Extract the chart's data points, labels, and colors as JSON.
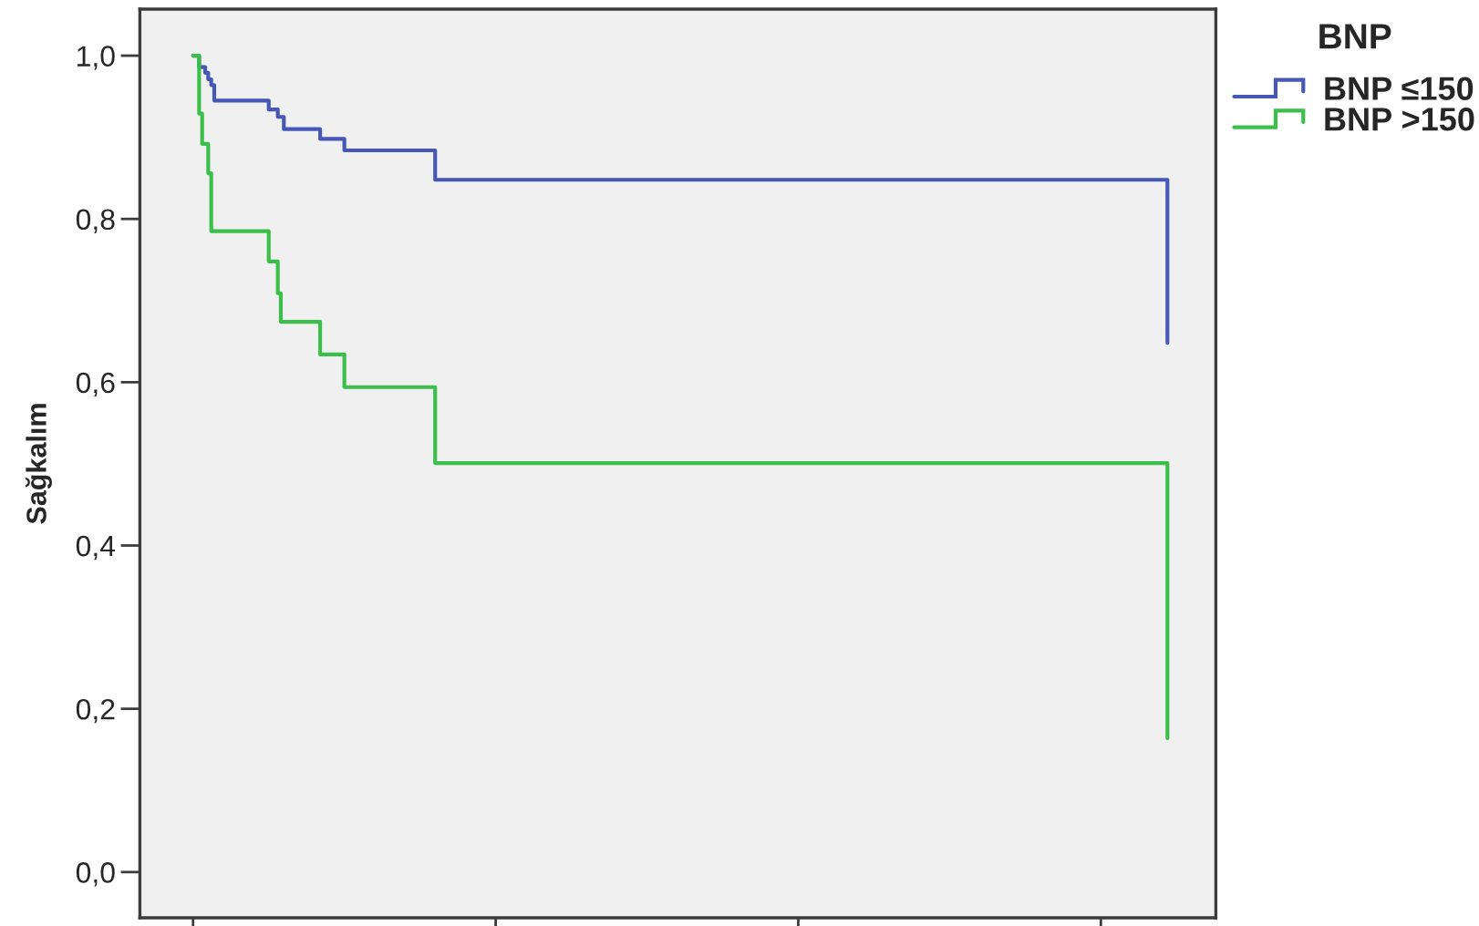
{
  "chart_data": {
    "type": "step",
    "ylabel": "Sağkalım",
    "legend_title": "BNP",
    "categories": [
      null,
      null,
      null,
      null,
      null,
      null,
      null,
      null,
      null,
      null,
      null,
      null,
      null,
      null,
      null,
      null,
      null,
      null,
      null,
      null,
      null,
      null,
      null,
      null,
      null,
      null,
      null,
      null,
      null,
      null,
      null,
      null,
      null,
      null,
      null,
      null,
      null,
      null,
      null,
      null,
      null,
      null,
      null,
      null,
      null,
      null,
      null,
      null,
      null,
      null,
      null,
      null,
      null,
      null,
      null,
      null,
      null,
      null,
      null,
      null,
      null,
      null,
      null,
      null,
      null,
      null,
      null,
      null,
      null,
      null,
      null,
      null,
      null,
      null,
      null,
      null,
      null,
      null,
      null,
      null,
      null,
      null,
      null,
      null,
      null,
      null,
      null,
      null,
      null,
      null,
      null,
      null,
      null,
      null,
      null,
      null,
      null,
      null,
      null,
      null,
      null,
      null,
      null,
      null,
      null,
      null,
      null,
      null,
      null,
      null,
      null,
      null,
      null,
      null,
      null,
      null,
      null,
      null,
      null,
      null,
      null,
      null,
      null,
      null,
      null,
      null,
      null,
      null,
      null,
      null,
      null,
      null,
      null,
      null,
      null,
      null,
      null,
      null,
      null,
      null,
      null,
      null,
      null,
      null,
      null,
      null,
      null,
      null,
      null,
      null,
      null,
      null,
      null,
      null,
      null,
      null,
      null,
      null,
      null,
      null,
      null,
      null,
      null,
      null,
      null,
      null,
      null,
      null,
      null,
      null,
      null,
      null,
      null,
      null,
      null,
      null,
      null,
      null,
      null,
      null,
      null,
      null,
      null,
      null,
      null,
      null,
      null,
      null,
      null,
      null,
      null,
      null,
      null,
      null,
      null,
      null,
      null,
      null,
      null,
      null,
      null,
      null,
      null,
      null,
      null,
      null,
      null,
      null,
      null,
      null,
      null,
      null,
      null,
      null,
      null,
      null,
      null,
      null,
      null,
      null,
      null,
      null,
      null,
      null,
      null,
      null,
      null,
      null,
      null,
      null,
      null,
      null,
      null,
      null,
      null,
      null,
      null,
      null,
      null,
      null,
      null,
      null,
      null,
      null,
      null,
      null,
      null,
      null,
      null,
      null,
      null,
      null,
      null,
      null,
      null,
      null,
      null,
      null,
      null,
      null,
      null,
      null,
      null,
      null,
      null,
      null,
      null,
      null,
      null,
      null,
      null,
      null,
      null,
      null,
      null,
      null,
      null,
      null,
      null,
      null,
      null,
      null,
      null,
      null,
      null,
      null,
      null,
      null,
      null,
      null,
      null,
      null,
      null,
      null,
      null,
      null,
      null,
      null,
      null,
      null,
      null,
      null,
      null,
      null,
      null,
      null,
      null,
      null,
      null,
      null,
      null,
      null,
      null,
      null,
      null,
      null,
      null,
      null,
      null,
      null,
      null,
      null,
      null
    ],
    "series": [
      {
        "name": "BNP ≤150",
        "color": "#4657b5",
        "values": [
          1.0,
          1.0,
          0.986,
          0.986,
          0.979,
          0.971,
          0.964,
          0.945,
          0.945,
          0.945,
          0.945,
          0.945,
          0.945,
          0.945,
          0.945,
          0.945,
          0.945,
          0.945,
          0.945,
          0.945,
          0.945,
          0.945,
          0.945,
          0.945,
          0.945,
          0.934,
          0.934,
          0.934,
          0.925,
          0.925,
          0.91,
          0.91,
          0.91,
          0.91,
          0.91,
          0.91,
          0.91,
          0.91,
          0.91,
          0.91,
          0.91,
          0.91,
          0.898,
          0.898,
          0.898,
          0.898,
          0.898,
          0.898,
          0.898,
          0.898,
          0.884,
          0.884,
          0.884,
          0.884,
          0.884,
          0.884,
          0.884,
          0.884,
          0.884,
          0.884,
          0.884,
          0.884,
          0.884,
          0.884,
          0.884,
          0.884,
          0.884,
          0.884,
          0.884,
          0.884,
          0.884,
          0.884,
          0.884,
          0.884,
          0.884,
          0.884,
          0.884,
          0.884,
          0.884,
          0.884,
          0.848,
          0.848,
          0.848,
          0.848,
          0.848,
          0.848,
          0.848,
          0.848,
          0.848,
          0.848,
          0.848,
          0.848,
          0.848,
          0.848,
          0.848,
          0.848,
          0.848,
          0.848,
          0.848,
          0.848,
          0.848,
          0.848,
          0.848,
          0.848,
          0.848,
          0.848,
          0.848,
          0.848,
          0.848,
          0.848,
          0.848,
          0.848,
          0.848,
          0.848,
          0.848,
          0.848,
          0.848,
          0.848,
          0.848,
          0.848,
          0.848,
          0.848,
          0.848,
          0.848,
          0.848,
          0.848,
          0.848,
          0.848,
          0.848,
          0.848,
          0.848,
          0.848,
          0.848,
          0.848,
          0.848,
          0.848,
          0.848,
          0.848,
          0.848,
          0.848,
          0.848,
          0.848,
          0.848,
          0.848,
          0.848,
          0.848,
          0.848,
          0.848,
          0.848,
          0.848,
          0.848,
          0.848,
          0.848,
          0.848,
          0.848,
          0.848,
          0.848,
          0.848,
          0.848,
          0.848,
          0.848,
          0.848,
          0.848,
          0.848,
          0.848,
          0.848,
          0.848,
          0.848,
          0.848,
          0.848,
          0.848,
          0.848,
          0.848,
          0.848,
          0.848,
          0.848,
          0.848,
          0.848,
          0.848,
          0.848,
          0.848,
          0.848,
          0.848,
          0.848,
          0.848,
          0.848,
          0.848,
          0.848,
          0.848,
          0.848,
          0.848,
          0.848,
          0.848,
          0.848,
          0.848,
          0.848,
          0.848,
          0.848,
          0.848,
          0.848,
          0.848,
          0.848,
          0.848,
          0.848,
          0.848,
          0.848,
          0.848,
          0.848,
          0.848,
          0.848,
          0.848,
          0.848,
          0.848,
          0.848,
          0.848,
          0.848,
          0.848,
          0.848,
          0.848,
          0.848,
          0.848,
          0.848,
          0.848,
          0.848,
          0.848,
          0.848,
          0.848,
          0.848,
          0.848,
          0.848,
          0.848,
          0.848,
          0.848,
          0.848,
          0.848,
          0.848,
          0.848,
          0.848,
          0.848,
          0.848,
          0.848,
          0.848,
          0.848,
          0.848,
          0.848,
          0.848,
          0.848,
          0.848,
          0.848,
          0.848,
          0.848,
          0.848,
          0.848,
          0.848,
          0.848,
          0.848,
          0.848,
          0.848,
          0.848,
          0.848,
          0.848,
          0.848,
          0.848,
          0.848,
          0.848,
          0.848,
          0.848,
          0.848,
          0.848,
          0.848,
          0.848,
          0.848,
          0.848,
          0.848,
          0.848,
          0.848,
          0.848,
          0.848,
          0.848,
          0.848,
          0.848,
          0.848,
          0.848,
          0.848,
          0.848,
          0.848,
          0.848,
          0.848,
          0.848,
          0.848,
          0.848,
          0.848,
          0.848,
          0.848,
          0.848,
          0.848,
          0.848,
          0.848,
          0.848,
          0.848,
          0.848,
          0.848,
          0.848,
          0.848,
          0.848,
          0.848,
          0.848,
          0.848,
          0.848,
          0.848,
          0.848,
          0.848,
          0.848,
          0.848,
          0.848,
          0.848,
          0.848,
          0.848,
          0.848,
          0.848,
          0.848,
          0.848,
          0.648
        ]
      },
      {
        "name": "BNP >150",
        "color": "#3cbf4a",
        "values": [
          1.0,
          1.0,
          0.929,
          0.892,
          0.892,
          0.856,
          0.785,
          0.785,
          0.785,
          0.785,
          0.785,
          0.785,
          0.785,
          0.785,
          0.785,
          0.785,
          0.785,
          0.785,
          0.785,
          0.785,
          0.785,
          0.785,
          0.785,
          0.785,
          0.785,
          0.748,
          0.748,
          0.748,
          0.709,
          0.674,
          0.674,
          0.674,
          0.674,
          0.674,
          0.674,
          0.674,
          0.674,
          0.674,
          0.674,
          0.674,
          0.674,
          0.674,
          0.634,
          0.634,
          0.634,
          0.634,
          0.634,
          0.634,
          0.634,
          0.634,
          0.594,
          0.594,
          0.594,
          0.594,
          0.594,
          0.594,
          0.594,
          0.594,
          0.594,
          0.594,
          0.594,
          0.594,
          0.594,
          0.594,
          0.594,
          0.594,
          0.594,
          0.594,
          0.594,
          0.594,
          0.594,
          0.594,
          0.594,
          0.594,
          0.594,
          0.594,
          0.594,
          0.594,
          0.594,
          0.594,
          0.501,
          0.501,
          0.501,
          0.501,
          0.501,
          0.501,
          0.501,
          0.501,
          0.501,
          0.501,
          0.501,
          0.501,
          0.501,
          0.501,
          0.501,
          0.501,
          0.501,
          0.501,
          0.501,
          0.501,
          0.501,
          0.501,
          0.501,
          0.501,
          0.501,
          0.501,
          0.501,
          0.501,
          0.501,
          0.501,
          0.501,
          0.501,
          0.501,
          0.501,
          0.501,
          0.501,
          0.501,
          0.501,
          0.501,
          0.501,
          0.501,
          0.501,
          0.501,
          0.501,
          0.501,
          0.501,
          0.501,
          0.501,
          0.501,
          0.501,
          0.501,
          0.501,
          0.501,
          0.501,
          0.501,
          0.501,
          0.501,
          0.501,
          0.501,
          0.501,
          0.501,
          0.501,
          0.501,
          0.501,
          0.501,
          0.501,
          0.501,
          0.501,
          0.501,
          0.501,
          0.501,
          0.501,
          0.501,
          0.501,
          0.501,
          0.501,
          0.501,
          0.501,
          0.501,
          0.501,
          0.501,
          0.501,
          0.501,
          0.501,
          0.501,
          0.501,
          0.501,
          0.501,
          0.501,
          0.501,
          0.501,
          0.501,
          0.501,
          0.501,
          0.501,
          0.501,
          0.501,
          0.501,
          0.501,
          0.501,
          0.501,
          0.501,
          0.501,
          0.501,
          0.501,
          0.501,
          0.501,
          0.501,
          0.501,
          0.501,
          0.501,
          0.501,
          0.501,
          0.501,
          0.501,
          0.501,
          0.501,
          0.501,
          0.501,
          0.501,
          0.501,
          0.501,
          0.501,
          0.501,
          0.501,
          0.501,
          0.501,
          0.501,
          0.501,
          0.501,
          0.501,
          0.501,
          0.501,
          0.501,
          0.501,
          0.501,
          0.501,
          0.501,
          0.501,
          0.501,
          0.501,
          0.501,
          0.501,
          0.501,
          0.501,
          0.501,
          0.501,
          0.501,
          0.501,
          0.501,
          0.501,
          0.501,
          0.501,
          0.501,
          0.501,
          0.501,
          0.501,
          0.501,
          0.501,
          0.501,
          0.501,
          0.501,
          0.501,
          0.501,
          0.501,
          0.501,
          0.501,
          0.501,
          0.501,
          0.501,
          0.501,
          0.501,
          0.501,
          0.501,
          0.501,
          0.501,
          0.501,
          0.501,
          0.501,
          0.501,
          0.501,
          0.501,
          0.501,
          0.501,
          0.501,
          0.501,
          0.501,
          0.501,
          0.501,
          0.501,
          0.501,
          0.501,
          0.501,
          0.501,
          0.501,
          0.501,
          0.501,
          0.501,
          0.501,
          0.501,
          0.501,
          0.501,
          0.501,
          0.501,
          0.501,
          0.501,
          0.501,
          0.501,
          0.501,
          0.501,
          0.501,
          0.501,
          0.501,
          0.501,
          0.501,
          0.501,
          0.501,
          0.501,
          0.501,
          0.501,
          0.501,
          0.501,
          0.501,
          0.501,
          0.501,
          0.501,
          0.501,
          0.501,
          0.501,
          0.501,
          0.501,
          0.501,
          0.501,
          0.501,
          0.501,
          0.501,
          0.501,
          0.501,
          0.501,
          0.501,
          0.501,
          0.501,
          0.164
        ]
      }
    ],
    "ylim": [
      -0.056,
      1.057
    ],
    "yticks": [
      {
        "value": 0,
        "label": "0,0"
      },
      {
        "value": 0.2,
        "label": "0,2"
      },
      {
        "value": 0.4,
        "label": "0,4"
      },
      {
        "value": 0.6,
        "label": "0,6"
      },
      {
        "value": 0.8,
        "label": "0,8"
      },
      {
        "value": 1.0,
        "label": "1,0"
      }
    ],
    "legend": "top right",
    "tick_labels": "y"
  }
}
